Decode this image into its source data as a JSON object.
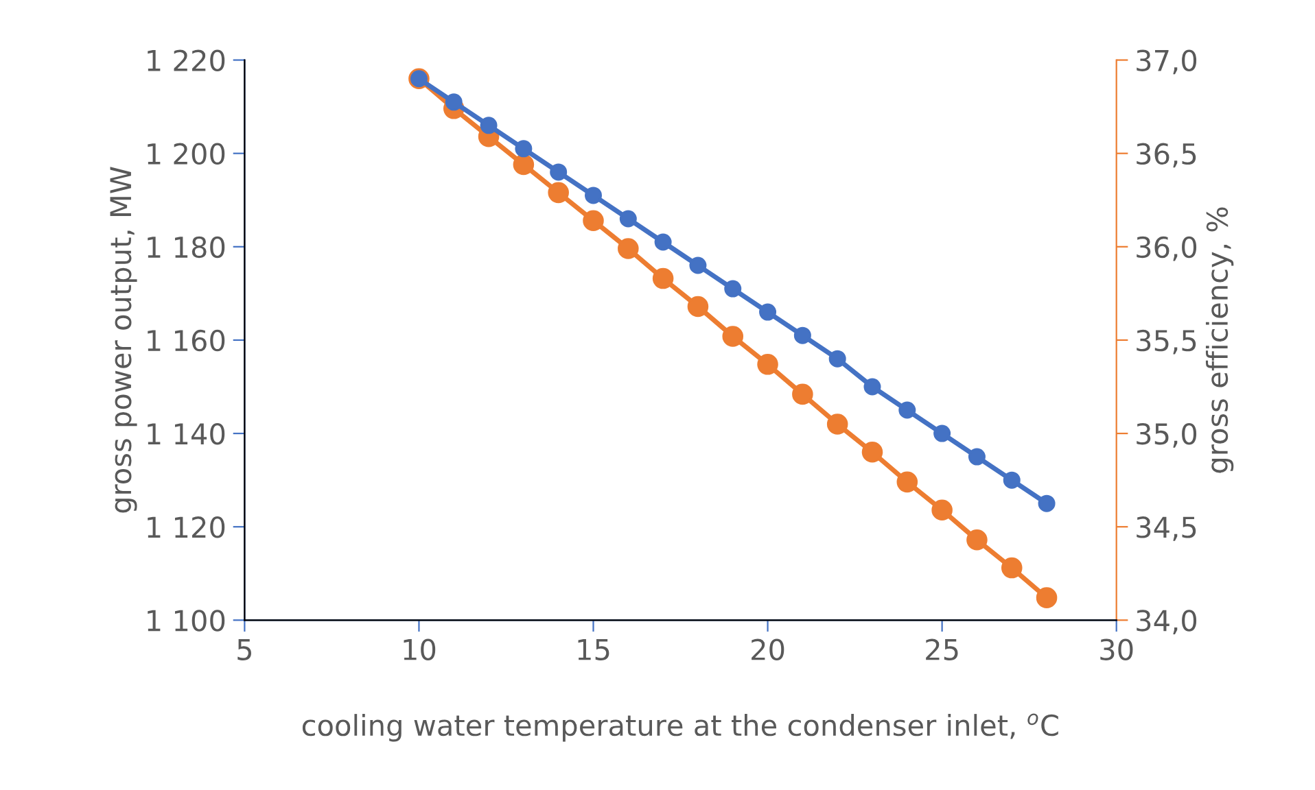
{
  "chart_data": {
    "type": "line",
    "xlabel": "cooling water temperature at the condenser inlet, $^{o}$C",
    "ylabel": "gross power output, MW",
    "y2label": "gross efficiency, %",
    "x": [
      10,
      11,
      12,
      13,
      14,
      15,
      16,
      17,
      18,
      19,
      20,
      21,
      22,
      23,
      24,
      25,
      26,
      27,
      28
    ],
    "series": [
      {
        "color": "#4472c4",
        "values": [
          1216,
          1211,
          1206,
          1201,
          1196,
          1191,
          1186,
          1181,
          1176,
          1171,
          1166,
          1161,
          1156,
          1150,
          1145,
          1140,
          1135,
          1130,
          1125
        ]
      },
      {
        "color": "#ed7d31",
        "axis": "y2",
        "values": [
          36.9,
          36.74,
          36.59,
          36.44,
          36.29,
          36.14,
          35.99,
          35.83,
          35.68,
          35.52,
          35.37,
          35.21,
          35.05,
          34.9,
          34.74,
          34.59,
          34.43,
          34.28,
          34.12
        ]
      }
    ],
    "xlim": [
      5,
      30
    ],
    "xticks": [
      5,
      10,
      15,
      20,
      25,
      30
    ],
    "ylim": [
      1100,
      1220
    ],
    "yticks": [
      {
        "value": 1100,
        "label": "1 100"
      },
      {
        "value": 1120,
        "label": "1 120"
      },
      {
        "value": 1140,
        "label": "1 140"
      },
      {
        "value": 1160,
        "label": "1 160"
      },
      {
        "value": 1180,
        "label": "1 180"
      },
      {
        "value": 1200,
        "label": "1 200"
      },
      {
        "value": 1220,
        "label": "1 220"
      }
    ],
    "y2lim": [
      34.0,
      37.0
    ],
    "y2ticks": [
      {
        "value": 34.0,
        "label": "34,0"
      },
      {
        "value": 34.5,
        "label": "34,5"
      },
      {
        "value": 35.0,
        "label": "35,0"
      },
      {
        "value": 35.5,
        "label": "35,5"
      },
      {
        "value": 36.0,
        "label": "36,0"
      },
      {
        "value": 36.5,
        "label": "36,5"
      },
      {
        "value": 37.0,
        "label": "37,0"
      }
    ],
    "marker": "circle",
    "line_style": "solid",
    "grid": false,
    "legend": false
  }
}
